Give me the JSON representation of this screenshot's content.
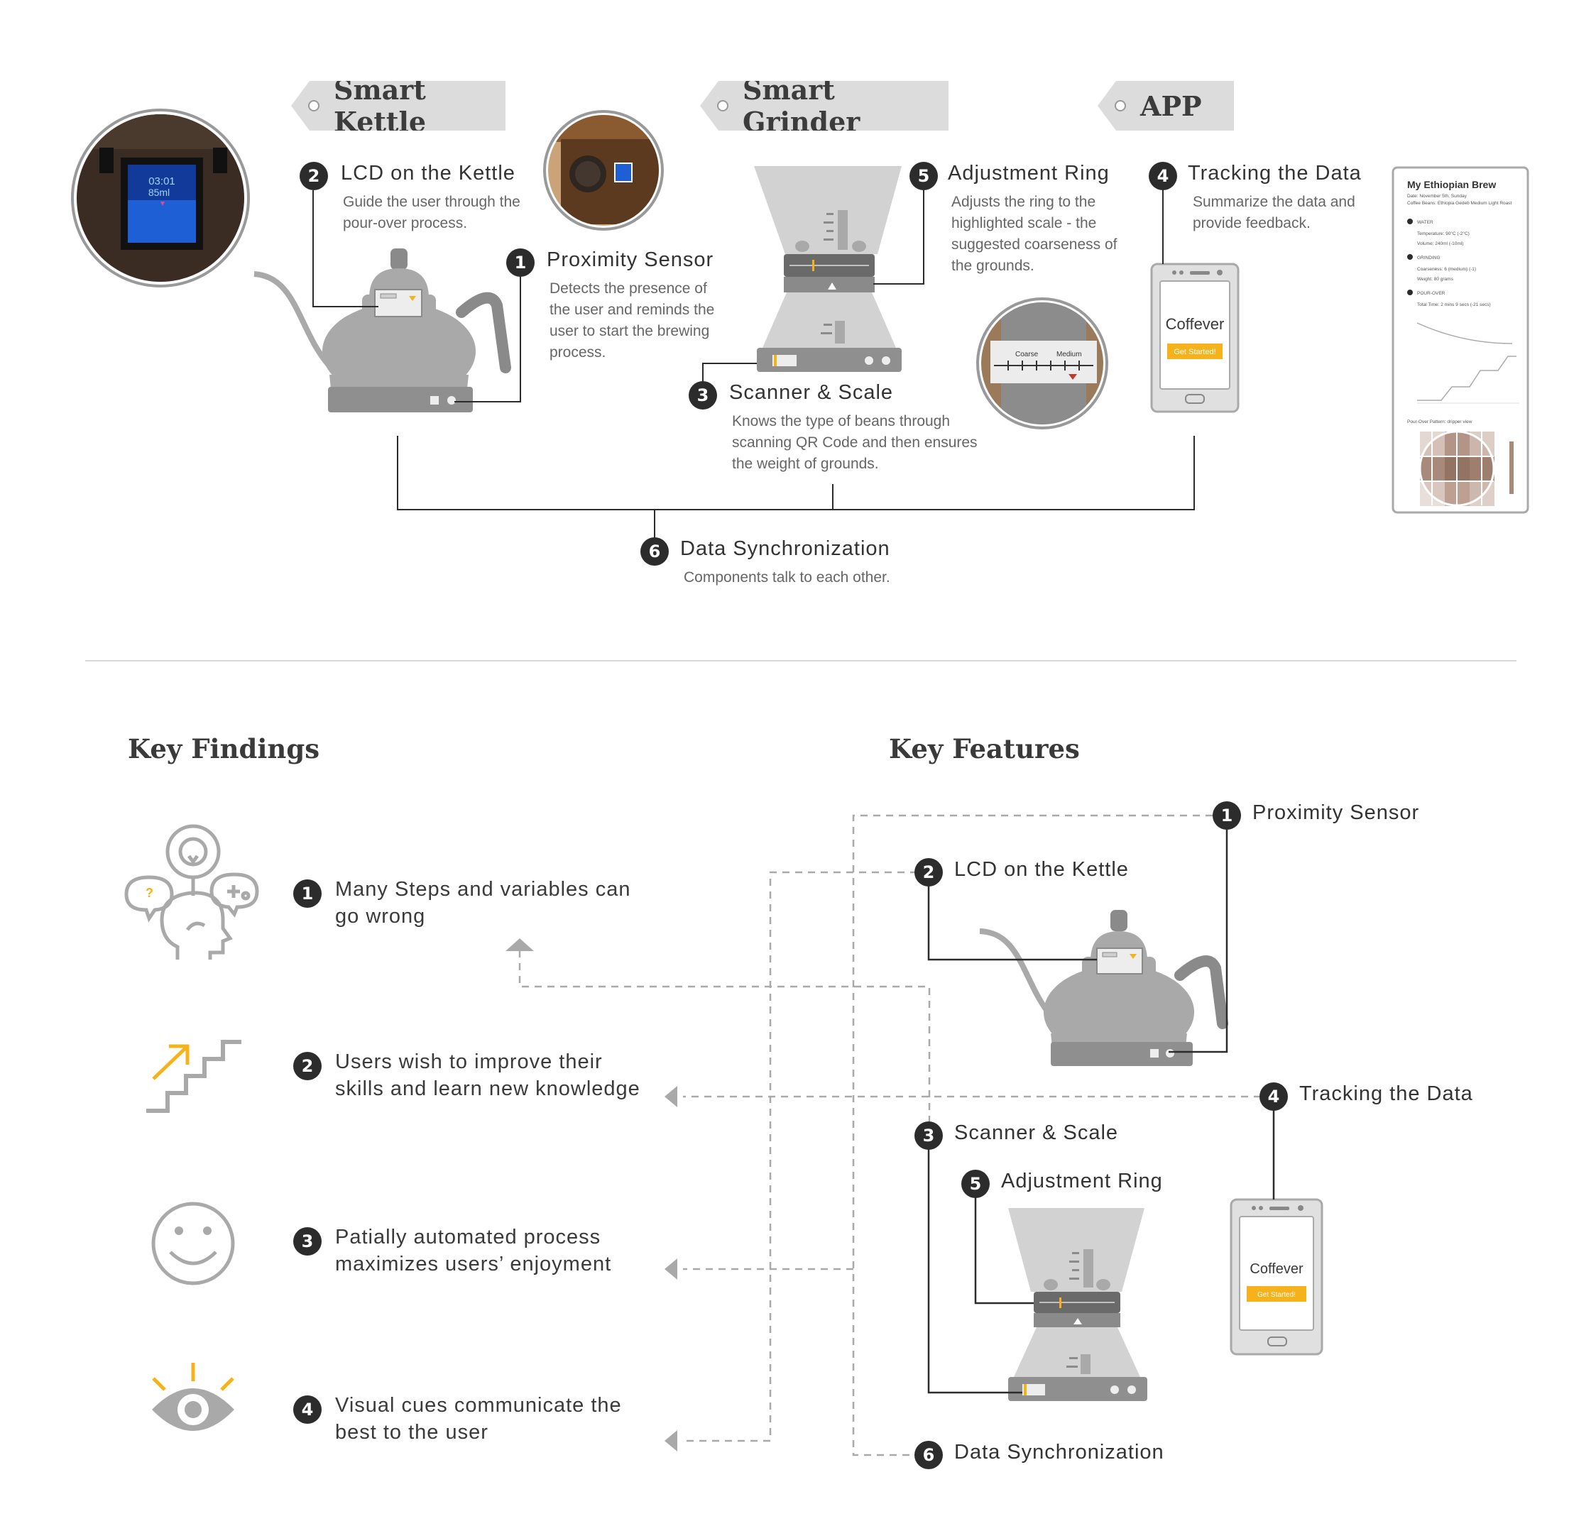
{
  "tags": {
    "kettle": "Smart Kettle",
    "grinder": "Smart Grinder",
    "app": "APP"
  },
  "top_features": {
    "lcd": {
      "num": "2",
      "title": "LCD on the Kettle",
      "desc": "Guide the user through the pour-over process."
    },
    "proximity": {
      "num": "1",
      "title": "Proximity Sensor",
      "desc": "Detects the presence of the user and reminds the user to start the brewing process."
    },
    "adjust": {
      "num": "5",
      "title": "Adjustment Ring",
      "desc": "Adjusts the ring to the highlighted scale - the suggested coarseness of the grounds."
    },
    "scanner": {
      "num": "3",
      "title": "Scanner & Scale",
      "desc": "Knows the type of beans through scanning QR Code and then ensures the weight of grounds."
    },
    "tracking": {
      "num": "4",
      "title": "Tracking the Data",
      "desc": "Summarize the data and provide feedback."
    },
    "sync": {
      "num": "6",
      "title": "Data Synchronization",
      "desc": "Components talk to each other."
    }
  },
  "lcd_screen": {
    "time": "03:01",
    "volume": "85ml"
  },
  "ring_photo": {
    "coarse": "Coarse",
    "medium": "Medium"
  },
  "phone": {
    "brand": "Coffever",
    "button": "Get Started!"
  },
  "report": {
    "title": "My Ethiopian Brew",
    "date": "Date: November 5th, Sunday",
    "beans": "Coffee Beans: Ethiopia Gedeb Medium Light Roast",
    "water_head": "WATER",
    "temperature": "Temperature: 90°C (-2°C)",
    "volume": "Volume: 240ml (-10ml)",
    "grinding_head": "GRINDING",
    "coarseness": "Coarseness: 6 (medium) (-1)",
    "weight": "Weight: 80 grams",
    "pour_head": "POUR-OVER",
    "total_time": "Total Time: 2 mins 9 secs (-21 secs)",
    "pattern": "Pour-Over Pattern: dripper view"
  },
  "sections": {
    "findings": "Key Findings",
    "features": "Key Features"
  },
  "findings": [
    {
      "num": "1",
      "text": "Many Steps and variables can go wrong"
    },
    {
      "num": "2",
      "text": "Users wish to improve their skills and learn new knowledge"
    },
    {
      "num": "3",
      "text": "Patially automated process maximizes users’ enjoyment"
    },
    {
      "num": "4",
      "text": "Visual cues communicate the best to the user"
    }
  ],
  "features": {
    "proximity": {
      "num": "1",
      "label": "Proximity Sensor"
    },
    "lcd": {
      "num": "2",
      "label": "LCD on the Kettle"
    },
    "tracking": {
      "num": "4",
      "label": "Tracking the Data"
    },
    "scanner": {
      "num": "3",
      "label": "Scanner & Scale"
    },
    "adjust": {
      "num": "5",
      "label": "Adjustment Ring"
    },
    "sync": {
      "num": "6",
      "label": "Data Synchronization"
    }
  },
  "colors": {
    "accent": "#f5b21a",
    "dark": "#2c2c2c",
    "product_gray": "#a9a9a9",
    "lcd_blue": "#1f5fd6"
  }
}
